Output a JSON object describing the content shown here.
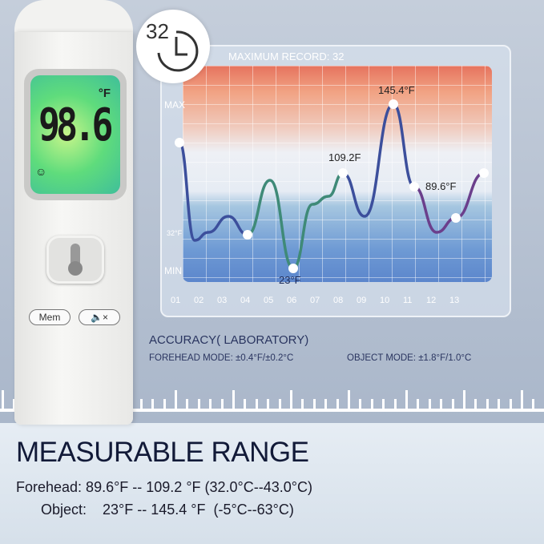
{
  "device": {
    "display_value": "98.6",
    "display_unit": "°F",
    "mem_label": "Mem",
    "mute_icon": "speaker-mute-icon",
    "smile_icon": "smiley-icon"
  },
  "record_badge": {
    "count": "32",
    "icon": "clock-icon"
  },
  "chart": {
    "title": "MAXIMUM RECORD: 32",
    "y_labels": {
      "max": "MAX",
      "mid": "32°F",
      "min": "MIN"
    },
    "x_labels": [
      "01",
      "02",
      "03",
      "04",
      "05",
      "06",
      "07",
      "08",
      "09",
      "10",
      "11",
      "12",
      "13"
    ],
    "annotations": {
      "max": "145.4°F",
      "high": "109.2F",
      "low": "23°F",
      "forehead_low": "89.6°F"
    },
    "colors": {
      "line_blue": "#3c4f9c",
      "line_green": "#3f8a78",
      "line_purple": "#6b3f8c"
    }
  },
  "accuracy": {
    "title": "ACCURACY( LABORATORY)",
    "forehead": "FOREHEAD MODE: ±0.4°F/±0.2°C",
    "object": "OBJECT MODE: ±1.8°F/1.0°C"
  },
  "range": {
    "title": "MEASURABLE RANGE",
    "forehead": "Forehead: 89.6°F -- 109.2 °F  (32.0°C--43.0°C)",
    "object": "Object:    23°F -- 145.4 °F  (-5°C--63°C)"
  }
}
